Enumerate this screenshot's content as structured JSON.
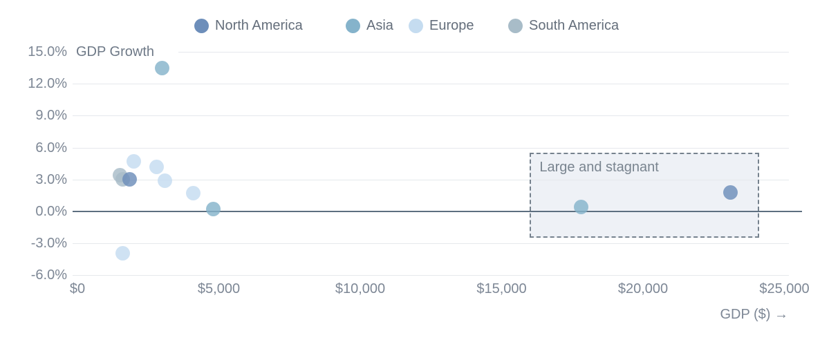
{
  "chart_data": {
    "type": "scatter",
    "title": "",
    "x_axis": {
      "label": "GDP ($) →",
      "ticks": [
        {
          "label": "$0",
          "value": 0
        },
        {
          "label": "$5,000",
          "value": 5000
        },
        {
          "label": "$10,000",
          "value": 10000
        },
        {
          "label": "$15,000",
          "value": 15000
        },
        {
          "label": "$20,000",
          "value": 20000
        },
        {
          "label": "$25,000",
          "value": 25000
        }
      ],
      "range": [
        0,
        25150
      ]
    },
    "y_axis": {
      "label": "GDP Growth",
      "ticks": [
        {
          "label": "15.0%",
          "value": 15
        },
        {
          "label": "12.0%",
          "value": 12
        },
        {
          "label": "9.0%",
          "value": 9
        },
        {
          "label": "6.0%",
          "value": 6
        },
        {
          "label": "3.0%",
          "value": 3
        },
        {
          "label": "0.0%",
          "value": 0
        },
        {
          "label": "-3.0%",
          "value": -3
        },
        {
          "label": "-6.0%",
          "value": -6
        }
      ],
      "range": [
        -6,
        15
      ],
      "unit": "percent"
    },
    "grid": true,
    "legend_position": "top",
    "series": [
      {
        "name": "North America",
        "color": "#6d8eba",
        "points": [
          {
            "x": 1850,
            "y": 3.0
          },
          {
            "x": 23100,
            "y": 1.8
          }
        ]
      },
      {
        "name": "Asia",
        "color": "#85b3cb",
        "points": [
          {
            "x": 3000,
            "y": 13.5
          },
          {
            "x": 4800,
            "y": 0.2
          },
          {
            "x": 17800,
            "y": 0.4
          }
        ]
      },
      {
        "name": "Europe",
        "color": "#c5dcf0",
        "points": [
          {
            "x": 2000,
            "y": 4.7
          },
          {
            "x": 2800,
            "y": 4.2
          },
          {
            "x": 3100,
            "y": 2.9
          },
          {
            "x": 4100,
            "y": 1.7
          },
          {
            "x": 1600,
            "y": -3.9
          }
        ]
      },
      {
        "name": "South America",
        "color": "#a8bcc8",
        "points": [
          {
            "x": 1500,
            "y": 3.4
          },
          {
            "x": 1600,
            "y": 3.0
          }
        ]
      }
    ],
    "annotation": {
      "label": "Large and stagnant",
      "x_range": [
        16000,
        24100
      ],
      "y_range": [
        -2.5,
        5.5
      ],
      "fill": "#eef1f6",
      "border_color": "#76828e"
    },
    "colors": {
      "zero_line": "#5d6f80",
      "gridline": "#e5e8ec",
      "tick_text": "#7d8795"
    }
  }
}
